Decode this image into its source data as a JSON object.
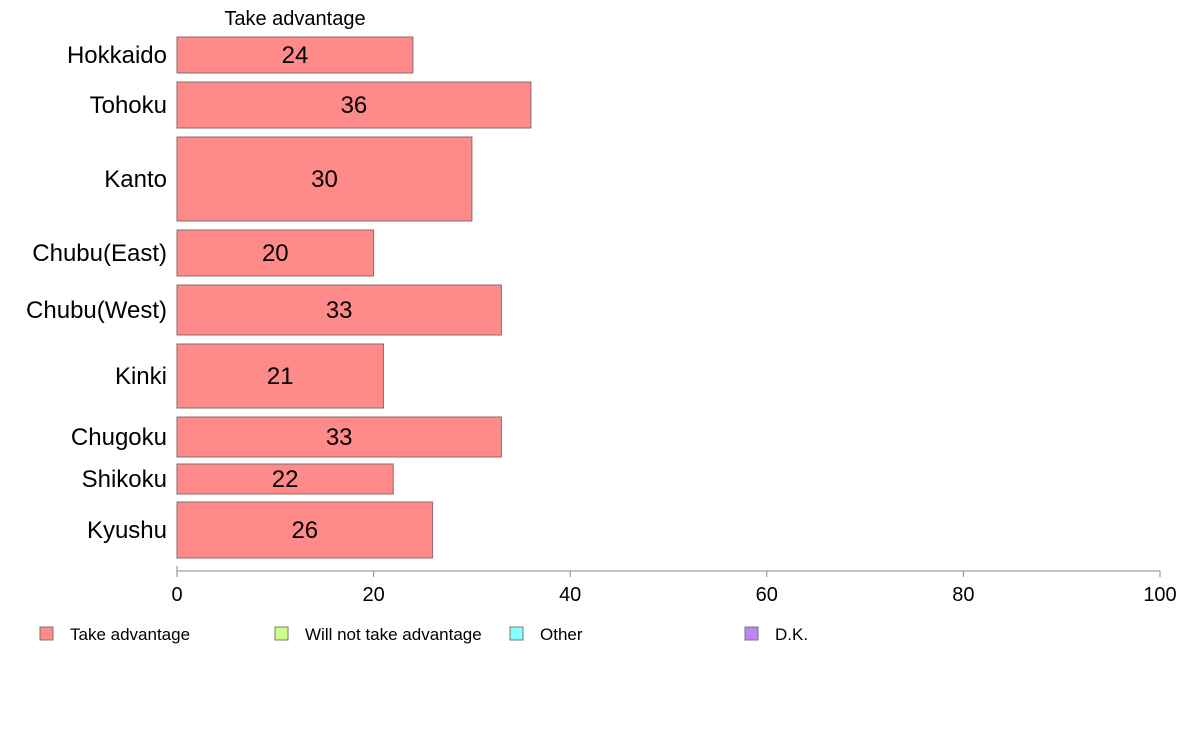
{
  "chart_data": {
    "type": "bar",
    "orientation": "horizontal",
    "column_title": "Take advantage",
    "categories": [
      "Hokkaido",
      "Tohoku",
      "Kanto",
      "Chubu(East)",
      "Chubu(West)",
      "Kinki",
      "Chugoku",
      "Shikoku",
      "Kyushu"
    ],
    "series": [
      {
        "name": "Take advantage",
        "values": [
          24,
          36,
          30,
          20,
          33,
          21,
          33,
          22,
          26
        ],
        "color": "#ff8a8a"
      },
      {
        "name": "Will not take advantage",
        "values": null,
        "color": "#ccff88"
      },
      {
        "name": "Other",
        "values": null,
        "color": "#88ffff"
      },
      {
        "name": "D.K.",
        "values": null,
        "color": "#bb88ee"
      }
    ],
    "xlim": [
      0,
      100
    ],
    "xticks": [
      0,
      20,
      40,
      60,
      80,
      100
    ],
    "grid": false,
    "legend_position": "bottom"
  }
}
